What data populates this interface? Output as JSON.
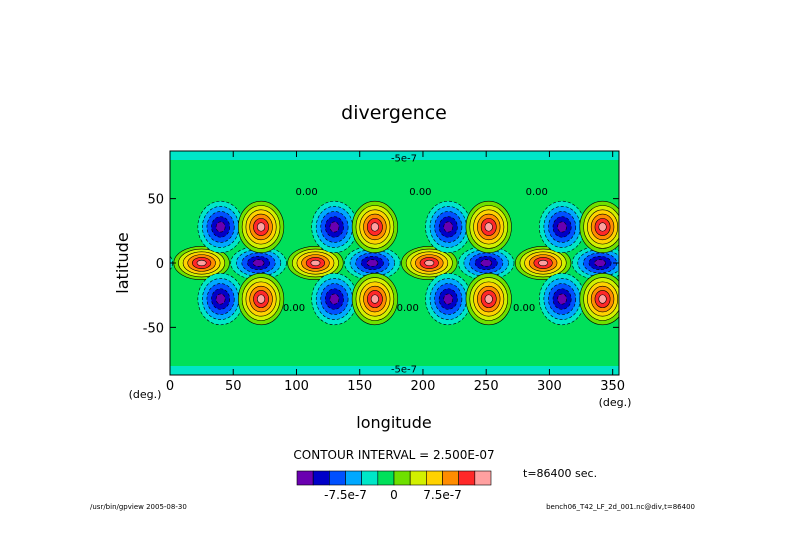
{
  "chart_data": {
    "type": "heatmap",
    "title": "divergence",
    "xlabel": "longitude",
    "ylabel": "latitude",
    "x_unit": "(deg.)",
    "y_unit": "(deg.)",
    "xlim": [
      0,
      355
    ],
    "ylim": [
      -87,
      87
    ],
    "x_ticks": [
      0,
      50,
      100,
      150,
      200,
      250,
      300,
      350
    ],
    "y_ticks": [
      -50,
      0,
      50
    ],
    "contour_interval_text": "CONTOUR INTERVAL = 2.500E-07",
    "contour_interval": 2.5e-07,
    "levels": [
      -1.25e-06,
      -1e-06,
      -7.5e-07,
      -5e-07,
      -2.5e-07,
      0,
      2.5e-07,
      5e-07,
      7.5e-07,
      1e-06,
      1.25e-06
    ],
    "colorbar_colors": [
      "#6a00b0",
      "#0000c8",
      "#0050ff",
      "#00a8ff",
      "#00e6c8",
      "#00e05a",
      "#6ee000",
      "#d2f000",
      "#ffd200",
      "#ff8c00",
      "#ff2828",
      "#ffa0a0"
    ],
    "colorbar_labels": [
      "-7.5e-7",
      "0",
      "7.5e-7"
    ],
    "contour_labels": [
      {
        "text": "-5e-7",
        "x": 185,
        "y": 82
      },
      {
        "text": "-5e-7",
        "x": 185,
        "y": -82
      },
      {
        "text": "0.00",
        "x": 108,
        "y": 56
      },
      {
        "text": "0.00",
        "x": 198,
        "y": 56
      },
      {
        "text": "0.00",
        "x": 290,
        "y": 56
      },
      {
        "text": "0.00",
        "x": 98,
        "y": -34
      },
      {
        "text": "0.00",
        "x": 188,
        "y": -34
      },
      {
        "text": "0.00",
        "x": 280,
        "y": -34
      }
    ],
    "wave_period_deg": 90,
    "features": [
      {
        "kind": "max",
        "lat": 0,
        "lon_offset": 25
      },
      {
        "kind": "min",
        "lat": 0,
        "lon_offset": 70
      },
      {
        "kind": "min",
        "lat": 28,
        "lon_offset": 40
      },
      {
        "kind": "max",
        "lat": 28,
        "lon_offset": 72
      },
      {
        "kind": "min",
        "lat": -28,
        "lon_offset": 40
      },
      {
        "kind": "max",
        "lat": -28,
        "lon_offset": 72
      }
    ]
  },
  "time_label": "t=86400 sec.",
  "footer_left": "/usr/bin/gpview  2005-08-30",
  "footer_right": "bench06_T42_LF_2d_001.nc@div,t=86400"
}
